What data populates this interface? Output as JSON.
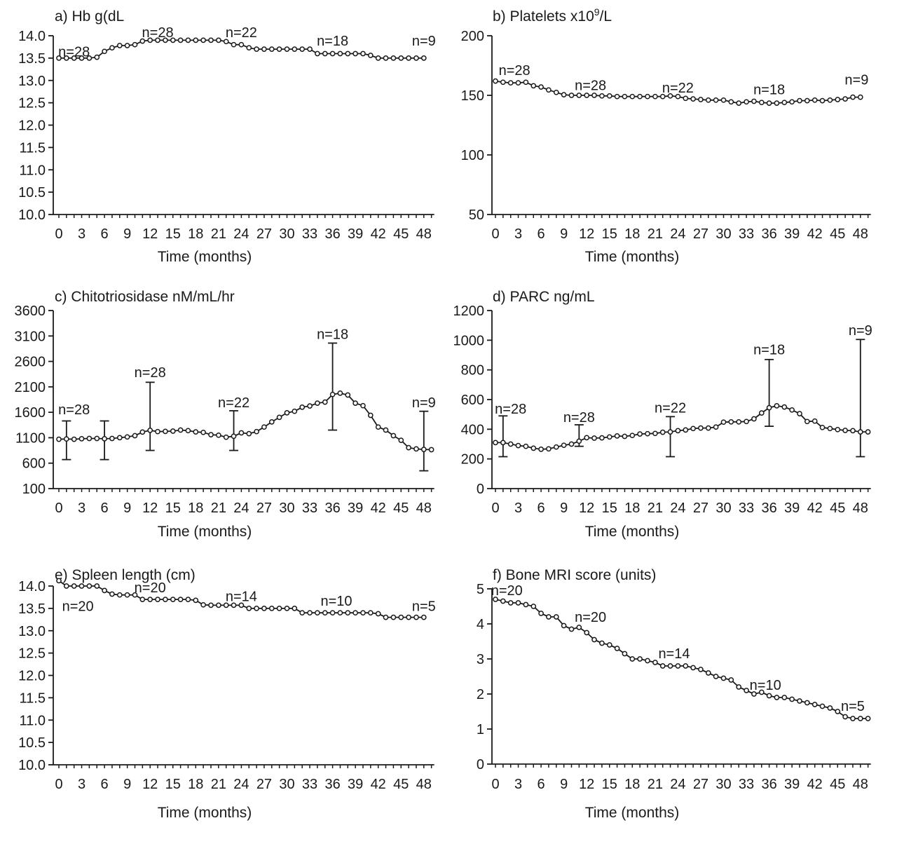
{
  "figure": {
    "background": "#ffffff",
    "ink_color": "#1a1a1a",
    "x_axis_label": "Time (months)",
    "marker_style": "open-circle"
  },
  "chart_data": [
    {
      "panel_id": "a",
      "type": "line",
      "title": "a) Hb g(dL",
      "title_sup": "",
      "title_post": "",
      "xlabel": "Time (months)",
      "x_start": 0,
      "x_step": 1,
      "x_tick_min": 0,
      "x_tick_max": 48,
      "x_tick_step": 3,
      "x_minor_step": 1,
      "ylim": [
        10.0,
        14.0
      ],
      "y_ticks": [
        {
          "v": 14.0,
          "label": "14.0"
        },
        {
          "v": 13.5,
          "label": "13.5"
        },
        {
          "v": 13.0,
          "label": "13.0"
        },
        {
          "v": 12.5,
          "label": "12.5"
        },
        {
          "v": 12.0,
          "label": "12.0"
        },
        {
          "v": 11.5,
          "label": "11.5"
        },
        {
          "v": 11.0,
          "label": "11.0"
        },
        {
          "v": 10.5,
          "label": "10.5"
        },
        {
          "v": 10.0,
          "label": "10.0"
        }
      ],
      "values": [
        13.5,
        13.5,
        13.5,
        13.5,
        13.5,
        13.52,
        13.65,
        13.73,
        13.78,
        13.78,
        13.8,
        13.88,
        13.9,
        13.9,
        13.9,
        13.9,
        13.9,
        13.9,
        13.9,
        13.9,
        13.9,
        13.9,
        13.87,
        13.8,
        13.8,
        13.73,
        13.7,
        13.7,
        13.7,
        13.7,
        13.7,
        13.7,
        13.7,
        13.7,
        13.6,
        13.6,
        13.6,
        13.6,
        13.6,
        13.6,
        13.6,
        13.56,
        13.5,
        13.5,
        13.5,
        13.5,
        13.5,
        13.5,
        13.5
      ],
      "n_labels": [
        {
          "x": 2,
          "y": 13.54,
          "text": "n=28"
        },
        {
          "x": 13,
          "y": 13.97,
          "text": "n=28"
        },
        {
          "x": 24,
          "y": 13.97,
          "text": "n=22"
        },
        {
          "x": 36,
          "y": 13.78,
          "text": "n=18"
        },
        {
          "x": 48,
          "y": 13.78,
          "text": "n=9"
        }
      ],
      "error_bars": []
    },
    {
      "panel_id": "b",
      "type": "line",
      "title": "b) Platelets x10",
      "title_sup": "9",
      "title_post": "/L",
      "xlabel": "Time (months)",
      "x_start": 0,
      "x_step": 1,
      "x_tick_min": 0,
      "x_tick_max": 48,
      "x_tick_step": 3,
      "x_minor_step": 1,
      "ylim": [
        50,
        200
      ],
      "y_ticks": [
        {
          "v": 200,
          "label": "200"
        },
        {
          "v": 150,
          "label": "150"
        },
        {
          "v": 100,
          "label": "100"
        },
        {
          "v": 50,
          "label": "50"
        }
      ],
      "values": [
        162,
        161,
        160.5,
        160.5,
        161,
        158,
        157,
        154.5,
        152.5,
        150.5,
        150,
        150,
        150,
        150,
        149.5,
        149.5,
        149,
        149,
        149,
        149,
        149,
        149,
        149,
        149.5,
        149,
        147.5,
        147,
        146.5,
        146,
        146,
        146,
        144.5,
        143.5,
        144.5,
        145,
        144,
        143.5,
        143.5,
        144,
        144.5,
        145.5,
        145.5,
        146,
        145.5,
        146,
        146.5,
        147,
        148.5,
        148.5
      ],
      "n_labels": [
        {
          "x": 2.5,
          "y": 167,
          "text": "n=28"
        },
        {
          "x": 12.5,
          "y": 154.5,
          "text": "n=28"
        },
        {
          "x": 24,
          "y": 152.5,
          "text": "n=22"
        },
        {
          "x": 36,
          "y": 151,
          "text": "n=18"
        },
        {
          "x": 47.5,
          "y": 159,
          "text": "n=9"
        }
      ],
      "error_bars": []
    },
    {
      "panel_id": "c",
      "type": "line",
      "title": "c) Chitotriosidase nM/mL/hr",
      "title_sup": "",
      "title_post": "",
      "xlabel": "Time (months)",
      "x_start": 0,
      "x_step": 1,
      "x_tick_min": 0,
      "x_tick_max": 48,
      "x_tick_step": 3,
      "x_minor_step": 1,
      "ylim": [
        100,
        3600
      ],
      "y_ticks": [
        {
          "v": 3600,
          "label": "3600"
        },
        {
          "v": 3100,
          "label": "3100"
        },
        {
          "v": 2600,
          "label": "2600"
        },
        {
          "v": 2100,
          "label": "2100"
        },
        {
          "v": 1600,
          "label": "1600"
        },
        {
          "v": 1100,
          "label": "1100"
        },
        {
          "v": 600,
          "label": "600"
        },
        {
          "v": 100,
          "label": "100"
        }
      ],
      "values": [
        1070,
        1075,
        1070,
        1080,
        1085,
        1085,
        1080,
        1085,
        1100,
        1115,
        1140,
        1210,
        1245,
        1220,
        1225,
        1230,
        1250,
        1240,
        1215,
        1205,
        1160,
        1150,
        1110,
        1130,
        1195,
        1180,
        1220,
        1310,
        1410,
        1500,
        1590,
        1620,
        1700,
        1725,
        1780,
        1800,
        1950,
        1975,
        1940,
        1780,
        1730,
        1540,
        1310,
        1250,
        1140,
        1050,
        905,
        880,
        870,
        865
      ],
      "n_labels": [
        {
          "x": 2,
          "y": 1560,
          "text": "n=28"
        },
        {
          "x": 12,
          "y": 2290,
          "text": "n=28"
        },
        {
          "x": 23,
          "y": 1700,
          "text": "n=22"
        },
        {
          "x": 36,
          "y": 3040,
          "text": "n=18"
        },
        {
          "x": 48,
          "y": 1700,
          "text": "n=9"
        }
      ],
      "error_bars": [
        {
          "x": 1,
          "lo": 670,
          "hi": 1430
        },
        {
          "x": 6,
          "lo": 670,
          "hi": 1430
        },
        {
          "x": 12,
          "lo": 850,
          "hi": 2190
        },
        {
          "x": 23,
          "lo": 850,
          "hi": 1630
        },
        {
          "x": 36,
          "lo": 1250,
          "hi": 2960
        },
        {
          "x": 48,
          "lo": 450,
          "hi": 1620
        }
      ]
    },
    {
      "panel_id": "d",
      "type": "line",
      "title": "d) PARC ng/mL",
      "title_sup": "",
      "title_post": "",
      "xlabel": "Time (months)",
      "x_start": 0,
      "x_step": 1,
      "x_tick_min": 0,
      "x_tick_max": 48,
      "x_tick_step": 3,
      "x_minor_step": 1,
      "ylim": [
        0,
        1200
      ],
      "y_ticks": [
        {
          "v": 1200,
          "label": "1200"
        },
        {
          "v": 1000,
          "label": "1000"
        },
        {
          "v": 800,
          "label": "800"
        },
        {
          "v": 600,
          "label": "600"
        },
        {
          "v": 400,
          "label": "400"
        },
        {
          "v": 200,
          "label": "200"
        },
        {
          "v": 0,
          "label": "0"
        }
      ],
      "values": [
        310,
        310,
        300,
        290,
        285,
        272,
        265,
        268,
        280,
        292,
        300,
        320,
        343,
        340,
        342,
        348,
        355,
        352,
        358,
        368,
        370,
        372,
        380,
        382,
        390,
        395,
        405,
        408,
        408,
        415,
        448,
        450,
        450,
        452,
        470,
        510,
        545,
        558,
        550,
        530,
        505,
        452,
        455,
        412,
        405,
        398,
        392,
        390,
        382,
        382
      ],
      "n_labels": [
        {
          "x": 2,
          "y": 505,
          "text": "n=28"
        },
        {
          "x": 11,
          "y": 448,
          "text": "n=28"
        },
        {
          "x": 23,
          "y": 512,
          "text": "n=22"
        },
        {
          "x": 36,
          "y": 905,
          "text": "n=18"
        },
        {
          "x": 48,
          "y": 1035,
          "text": "n=9"
        }
      ],
      "error_bars": [
        {
          "x": 1,
          "lo": 215,
          "hi": 490
        },
        {
          "x": 11,
          "lo": 285,
          "hi": 430
        },
        {
          "x": 23,
          "lo": 215,
          "hi": 485
        },
        {
          "x": 36,
          "lo": 420,
          "hi": 870
        },
        {
          "x": 48,
          "lo": 215,
          "hi": 1005
        }
      ]
    },
    {
      "panel_id": "e",
      "type": "line",
      "title": "e) Spleen length (cm)",
      "title_sup": "",
      "title_post": "",
      "xlabel": "Time (months)",
      "x_start": 0,
      "x_step": 1,
      "x_tick_min": 0,
      "x_tick_max": 48,
      "x_tick_step": 3,
      "x_minor_step": 1,
      "ylim": [
        10.0,
        14.0
      ],
      "y_ticks": [
        {
          "v": 14.0,
          "label": "14.0"
        },
        {
          "v": 13.5,
          "label": "13.5"
        },
        {
          "v": 13.0,
          "label": "13.0"
        },
        {
          "v": 12.5,
          "label": "12.5"
        },
        {
          "v": 12.0,
          "label": "12.0"
        },
        {
          "v": 11.5,
          "label": "11.5"
        },
        {
          "v": 11.0,
          "label": "11.0"
        },
        {
          "v": 10.5,
          "label": "10.5"
        },
        {
          "v": 10.0,
          "label": "10.0"
        }
      ],
      "values": [
        14.12,
        14.0,
        14.0,
        14.0,
        14.0,
        14.0,
        13.9,
        13.82,
        13.8,
        13.8,
        13.8,
        13.7,
        13.7,
        13.7,
        13.7,
        13.7,
        13.7,
        13.7,
        13.68,
        13.58,
        13.57,
        13.57,
        13.57,
        13.57,
        13.57,
        13.5,
        13.5,
        13.5,
        13.5,
        13.5,
        13.5,
        13.5,
        13.4,
        13.4,
        13.4,
        13.4,
        13.4,
        13.4,
        13.4,
        13.4,
        13.4,
        13.4,
        13.38,
        13.3,
        13.3,
        13.3,
        13.3,
        13.3,
        13.3
      ],
      "n_labels": [
        {
          "x": 2.5,
          "y": 13.44,
          "text": "n=20"
        },
        {
          "x": 12,
          "y": 13.86,
          "text": "n=20"
        },
        {
          "x": 24,
          "y": 13.66,
          "text": "n=14"
        },
        {
          "x": 36.5,
          "y": 13.56,
          "text": "n=10"
        },
        {
          "x": 48,
          "y": 13.44,
          "text": "n=5"
        }
      ],
      "error_bars": []
    },
    {
      "panel_id": "f",
      "type": "line",
      "title": "f) Bone MRI score (units)",
      "title_sup": "",
      "title_post": "",
      "xlabel": "Time (months)",
      "x_start": 0,
      "x_step": 1,
      "x_tick_min": 0,
      "x_tick_max": 48,
      "x_tick_step": 3,
      "x_minor_step": 1,
      "ylim": [
        0,
        5
      ],
      "y_ticks": [
        {
          "v": 5,
          "label": "5"
        },
        {
          "v": 4,
          "label": "4"
        },
        {
          "v": 3,
          "label": "3"
        },
        {
          "v": 2,
          "label": "2"
        },
        {
          "v": 1,
          "label": "1"
        },
        {
          "v": 0,
          "label": "0"
        }
      ],
      "values": [
        4.7,
        4.65,
        4.6,
        4.6,
        4.55,
        4.5,
        4.3,
        4.2,
        4.2,
        3.95,
        3.85,
        3.9,
        3.75,
        3.55,
        3.45,
        3.4,
        3.3,
        3.15,
        3.0,
        3.0,
        2.95,
        2.9,
        2.8,
        2.8,
        2.8,
        2.8,
        2.75,
        2.7,
        2.6,
        2.5,
        2.45,
        2.4,
        2.2,
        2.1,
        2.0,
        2.05,
        1.95,
        1.9,
        1.9,
        1.85,
        1.8,
        1.75,
        1.7,
        1.65,
        1.6,
        1.5,
        1.35,
        1.3,
        1.3,
        1.3
      ],
      "n_labels": [
        {
          "x": 1.5,
          "y": 4.82,
          "text": "n=20"
        },
        {
          "x": 12.5,
          "y": 4.06,
          "text": "n=20"
        },
        {
          "x": 23.5,
          "y": 3.02,
          "text": "n=14"
        },
        {
          "x": 35.5,
          "y": 2.12,
          "text": "n=10"
        },
        {
          "x": 47,
          "y": 1.52,
          "text": "n=5"
        }
      ],
      "error_bars": []
    }
  ]
}
